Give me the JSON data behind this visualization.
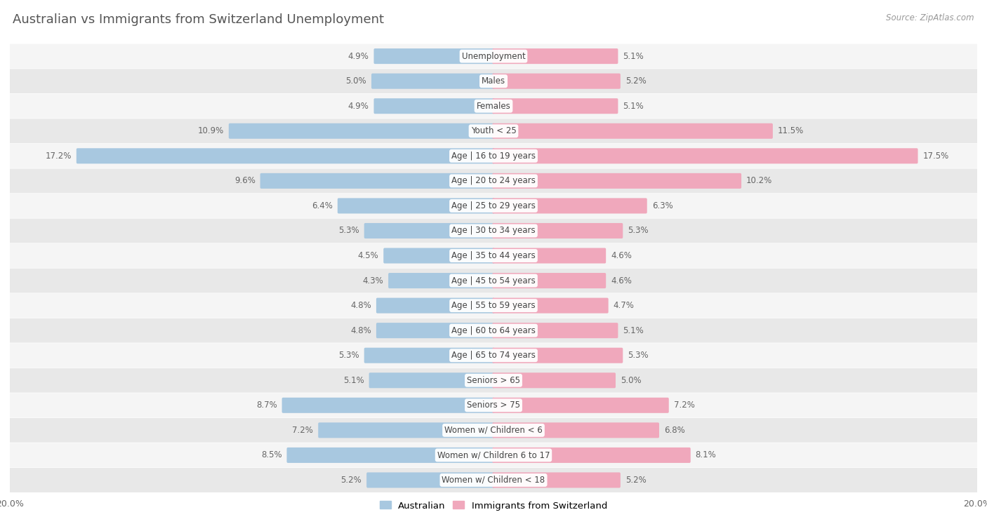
{
  "title": "Australian vs Immigrants from Switzerland Unemployment",
  "source": "Source: ZipAtlas.com",
  "categories": [
    "Unemployment",
    "Males",
    "Females",
    "Youth < 25",
    "Age | 16 to 19 years",
    "Age | 20 to 24 years",
    "Age | 25 to 29 years",
    "Age | 30 to 34 years",
    "Age | 35 to 44 years",
    "Age | 45 to 54 years",
    "Age | 55 to 59 years",
    "Age | 60 to 64 years",
    "Age | 65 to 74 years",
    "Seniors > 65",
    "Seniors > 75",
    "Women w/ Children < 6",
    "Women w/ Children 6 to 17",
    "Women w/ Children < 18"
  ],
  "australian": [
    4.9,
    5.0,
    4.9,
    10.9,
    17.2,
    9.6,
    6.4,
    5.3,
    4.5,
    4.3,
    4.8,
    4.8,
    5.3,
    5.1,
    8.7,
    7.2,
    8.5,
    5.2
  ],
  "immigrants": [
    5.1,
    5.2,
    5.1,
    11.5,
    17.5,
    10.2,
    6.3,
    5.3,
    4.6,
    4.6,
    4.7,
    5.1,
    5.3,
    5.0,
    7.2,
    6.8,
    8.1,
    5.2
  ],
  "australian_color": "#a8c8e0",
  "immigrants_color": "#f0a8bc",
  "max_val": 20.0,
  "row_color_light": "#f5f5f5",
  "row_color_dark": "#e8e8e8",
  "label_bg_color": "#ffffff",
  "title_color": "#555555",
  "value_color": "#666666"
}
